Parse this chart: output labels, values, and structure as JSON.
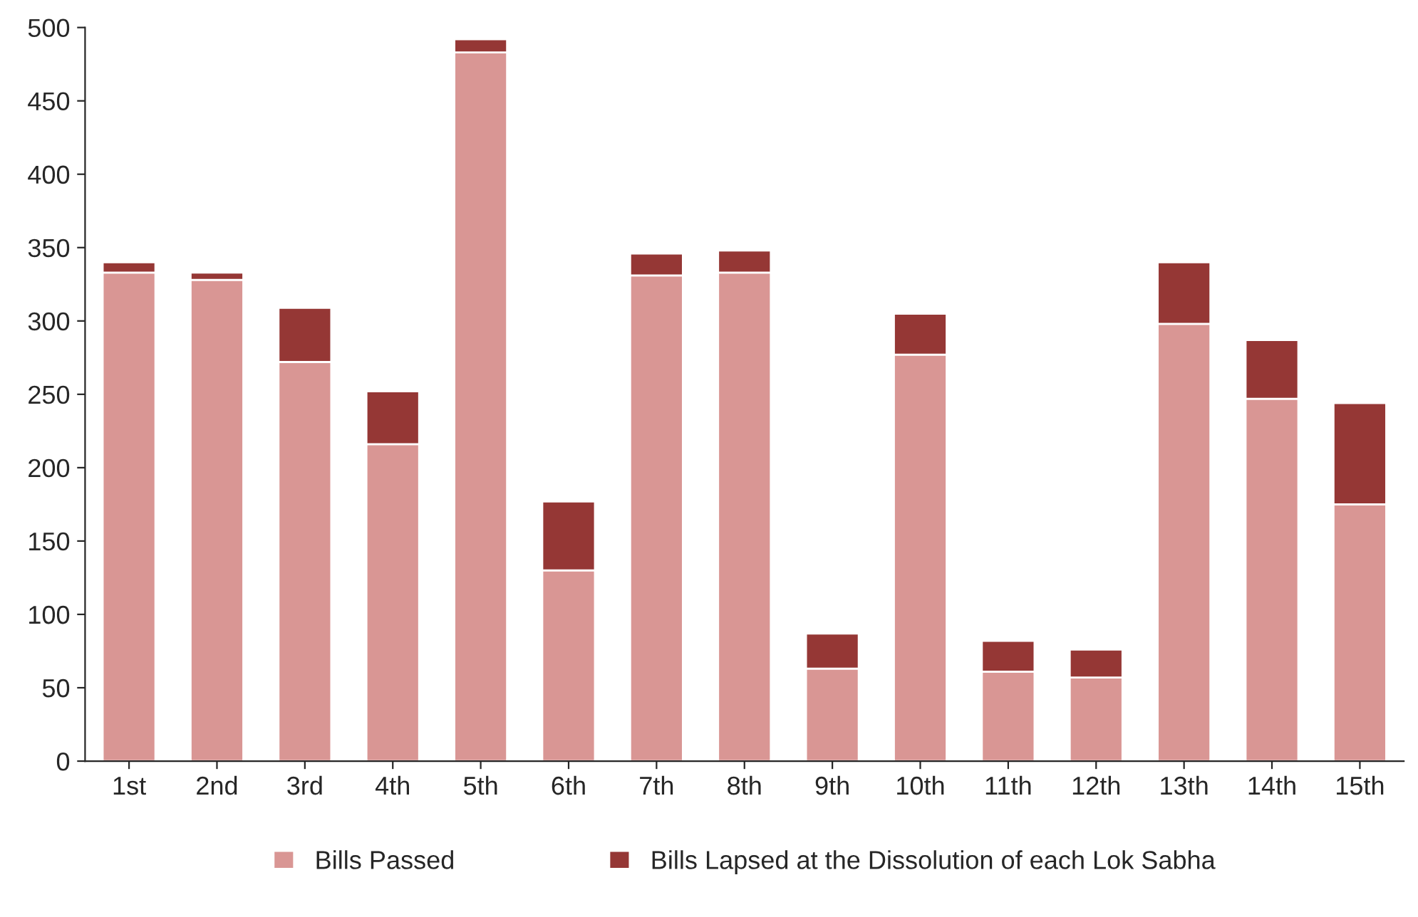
{
  "chart_data": {
    "type": "bar",
    "stacked": true,
    "categories": [
      "1st",
      "2nd",
      "3rd",
      "4th",
      "5th",
      "6th",
      "7th",
      "8th",
      "9th",
      "10th",
      "11th",
      "12th",
      "13th",
      "14th",
      "15th"
    ],
    "series": [
      {
        "name": "Bills Passed",
        "color": "#d99694",
        "values": [
          333,
          328,
          272,
          216,
          483,
          130,
          331,
          333,
          63,
          277,
          61,
          57,
          298,
          247,
          175
        ]
      },
      {
        "name": "Bills Lapsed at the Dissolution of each Lok Sabha",
        "color": "#953735",
        "values": [
          7,
          5,
          37,
          36,
          9,
          47,
          15,
          15,
          24,
          28,
          21,
          19,
          42,
          40,
          69
        ]
      }
    ],
    "ylim": [
      0,
      500
    ],
    "yticks": [
      0,
      50,
      100,
      150,
      200,
      250,
      300,
      350,
      400,
      450,
      500
    ],
    "grid": false,
    "legend": "bottom"
  }
}
